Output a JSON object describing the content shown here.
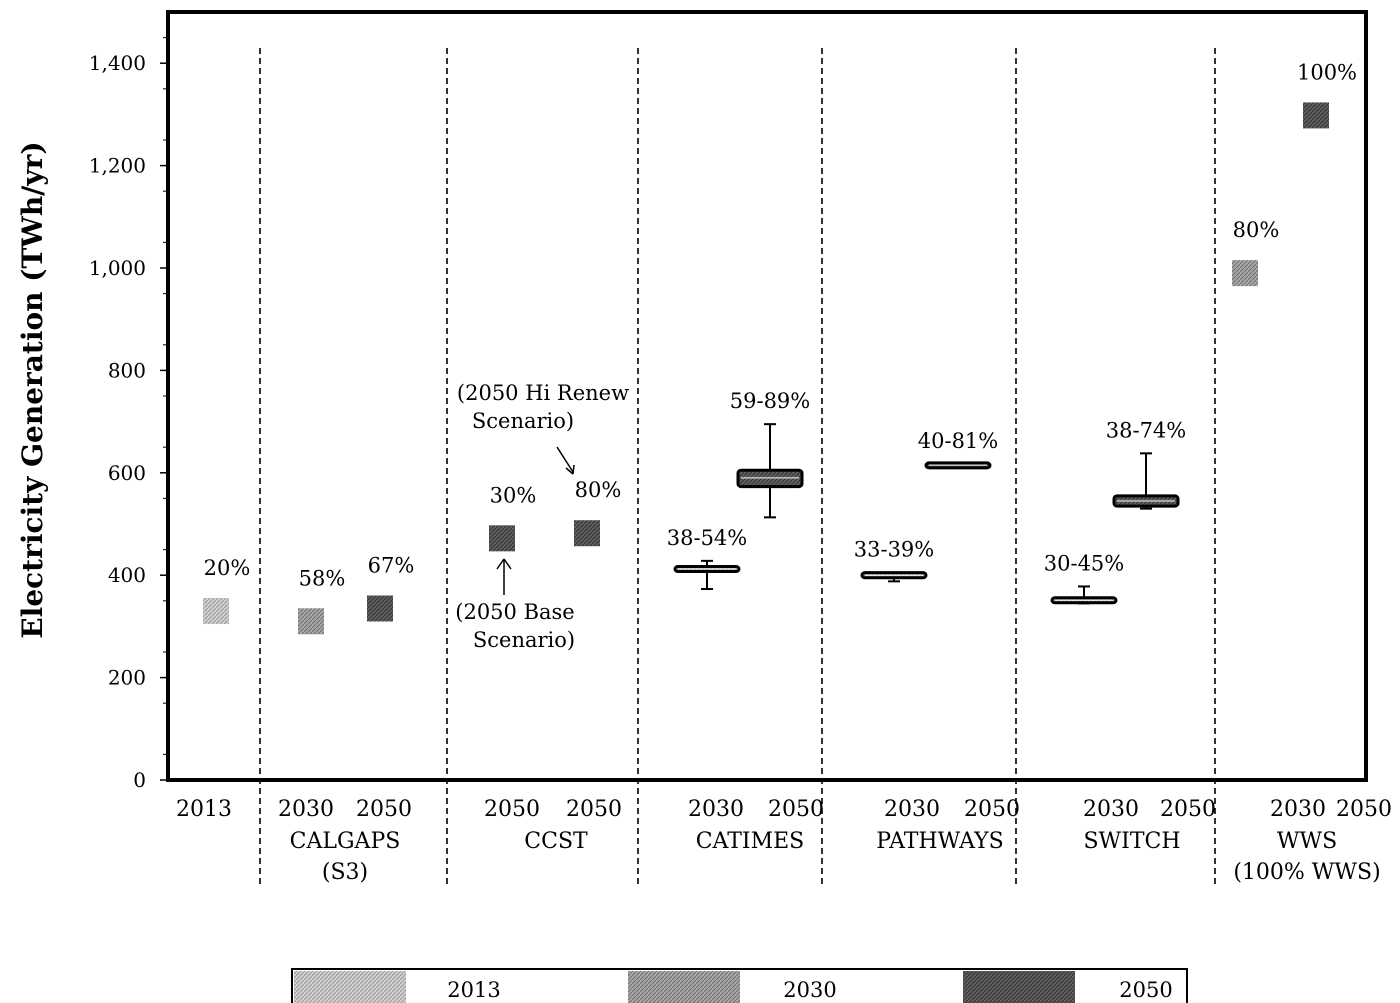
{
  "chart_data": {
    "type": "scatter",
    "ylabel": "Electricity Generation (TWh/yr)",
    "ylim": [
      0,
      1500
    ],
    "yticks": [
      0,
      200,
      400,
      600,
      800,
      1000,
      1200,
      1400
    ],
    "ytick_labels": [
      "0",
      "200",
      "400",
      "600",
      "800",
      "1,000",
      "1,200",
      "1,400"
    ],
    "grid": false,
    "legend_position": "bottom",
    "legend": [
      {
        "name": "2013",
        "color": "#b8b8b8"
      },
      {
        "name": "2030",
        "color": "#8c8c8c"
      },
      {
        "name": "2050",
        "color": "#555555"
      }
    ],
    "groups": [
      {
        "name": "",
        "years": [
          "2013"
        ]
      },
      {
        "name": "CALGAPS\n(S3)",
        "years": [
          "2030",
          "2050"
        ]
      },
      {
        "name": "CCST",
        "years": [
          "2050",
          "2050"
        ]
      },
      {
        "name": "CATIMES",
        "years": [
          "2030",
          "2050"
        ]
      },
      {
        "name": "PATHWAYS",
        "years": [
          "2030",
          "2050"
        ]
      },
      {
        "name": "SWITCH",
        "years": [
          "2030",
          "2050"
        ]
      },
      {
        "name": "WWS\n(100% WWS)",
        "years": [
          "2030",
          "2050"
        ]
      }
    ],
    "points": [
      {
        "group": "",
        "year": "2013",
        "series": "2013",
        "value": 330,
        "label": "20%"
      },
      {
        "group": "CALGAPS (S3)",
        "year": "2030",
        "series": "2030",
        "value": 310,
        "label": "58%"
      },
      {
        "group": "CALGAPS (S3)",
        "year": "2050",
        "series": "2050",
        "value": 335,
        "label": "67%"
      },
      {
        "group": "CCST",
        "year": "2050",
        "series": "2050",
        "value": 472,
        "label": "30%"
      },
      {
        "group": "CCST",
        "year": "2050",
        "series": "2050",
        "value": 482,
        "label": "80%"
      },
      {
        "group": "WWS (100% WWS)",
        "year": "2030",
        "series": "2030",
        "value": 990,
        "label": "80%"
      },
      {
        "group": "WWS (100% WWS)",
        "year": "2050",
        "series": "2050",
        "value": 1298,
        "label": "100%"
      }
    ],
    "ranges": [
      {
        "group": "CATIMES",
        "year": "2030",
        "series": "2030",
        "min": 373,
        "q1": 408,
        "median": 412,
        "q3": 416,
        "max": 428,
        "label": "38-54%"
      },
      {
        "group": "CATIMES",
        "year": "2050",
        "series": "2050",
        "min": 513,
        "q1": 573,
        "median": 590,
        "q3": 605,
        "max": 695,
        "label": "59-89%"
      },
      {
        "group": "PATHWAYS",
        "year": "2030",
        "series": "2030",
        "min": 388,
        "q1": 395,
        "median": 400,
        "q3": 405,
        "max": 405,
        "label": "33-39%"
      },
      {
        "group": "PATHWAYS",
        "year": "2050",
        "series": "2050",
        "min": 610,
        "q1": 612,
        "median": 615,
        "q3": 617,
        "max": 617,
        "label": "40-81%"
      },
      {
        "group": "SWITCH",
        "year": "2030",
        "series": "2030",
        "min": 345,
        "q1": 349,
        "median": 351,
        "q3": 353,
        "max": 378,
        "label": "30-45%"
      },
      {
        "group": "SWITCH",
        "year": "2050",
        "series": "2050",
        "min": 530,
        "q1": 535,
        "median": 545,
        "q3": 555,
        "max": 638,
        "label": "38-74%"
      }
    ],
    "annotations": [
      {
        "text": "(2050 Hi Renew\nScenario)",
        "arrow": "down",
        "target": "CCST 2050 80%"
      },
      {
        "text": "(2050 Base\nScenario)",
        "arrow": "up",
        "target": "CCST 2050 30%"
      }
    ]
  }
}
